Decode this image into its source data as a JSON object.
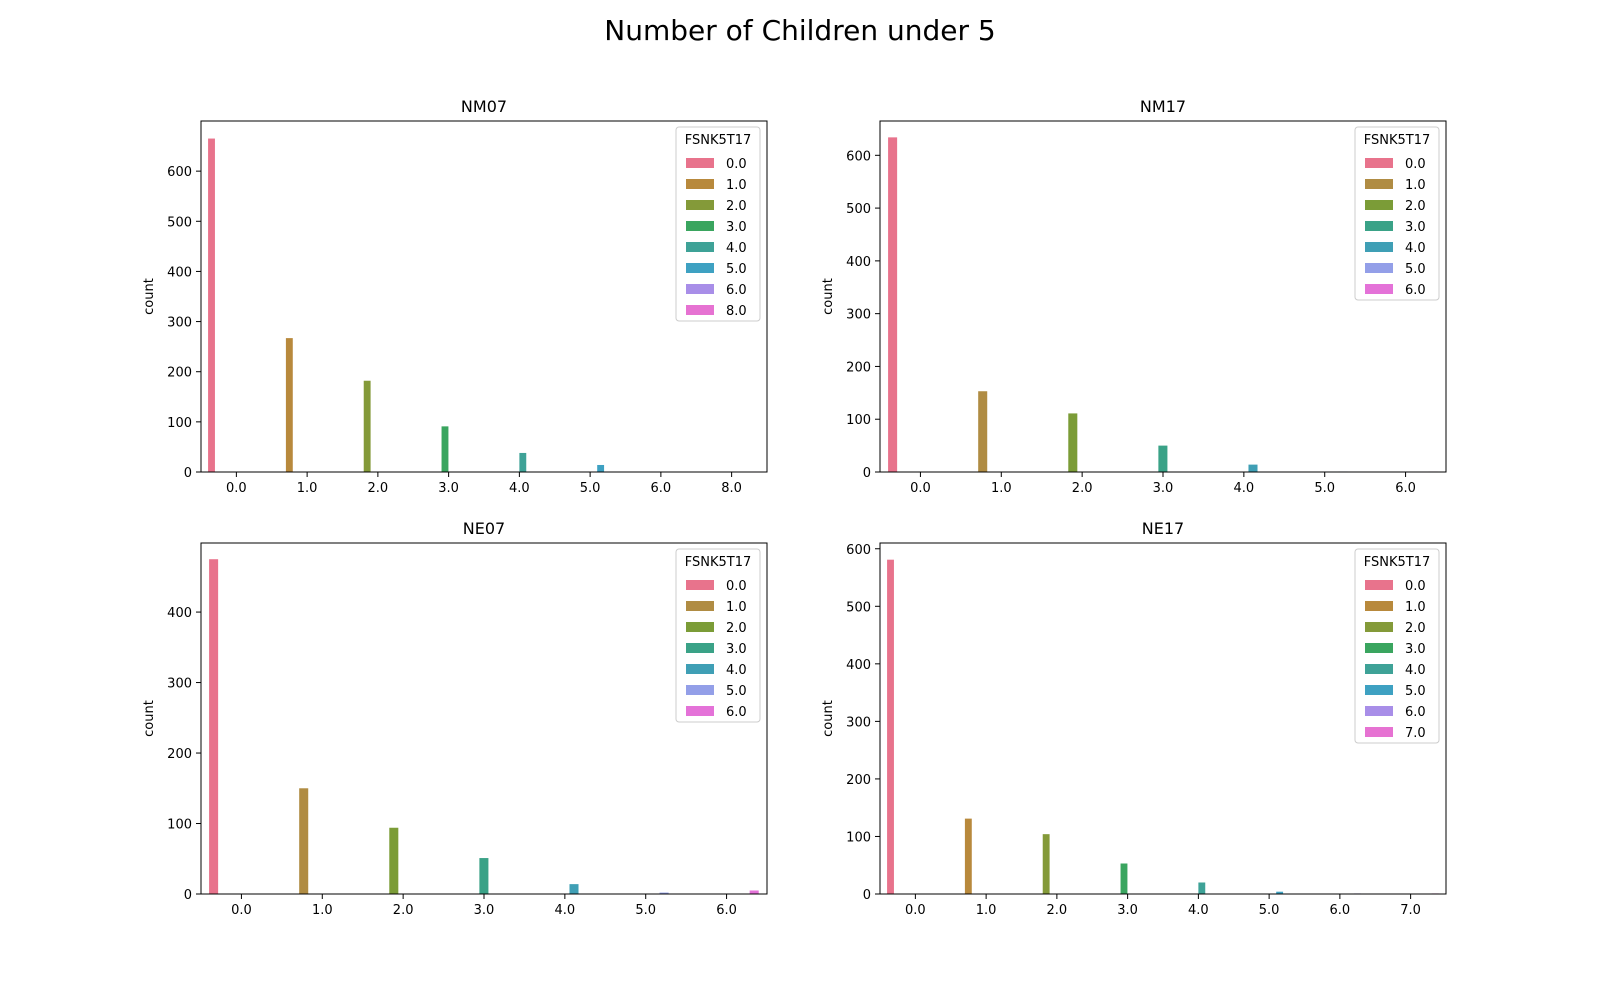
{
  "figure_title": "Number of Children under 5",
  "chart_data": [
    {
      "type": "bar",
      "title": "NM07",
      "ylabel": "count",
      "xlabel": "",
      "categories": [
        "0.0",
        "1.0",
        "2.0",
        "3.0",
        "4.0",
        "5.0",
        "6.0",
        "8.0"
      ],
      "yticks": [
        0,
        100,
        200,
        300,
        400,
        500,
        600
      ],
      "ylim": [
        0,
        700
      ],
      "legend_title": "FSNK5T17",
      "legend_position": "top-right",
      "series": [
        {
          "name": "0.0",
          "color": "#e8738c",
          "values": [
            665,
            0,
            0,
            0,
            0,
            0,
            0,
            0
          ]
        },
        {
          "name": "1.0",
          "color": "#b8893c",
          "values": [
            0,
            267,
            0,
            0,
            0,
            0,
            0,
            0
          ]
        },
        {
          "name": "2.0",
          "color": "#849a39",
          "values": [
            0,
            0,
            182,
            0,
            0,
            0,
            0,
            0
          ]
        },
        {
          "name": "3.0",
          "color": "#3aa55f",
          "values": [
            0,
            0,
            0,
            91,
            0,
            0,
            0,
            0
          ]
        },
        {
          "name": "4.0",
          "color": "#3ea297",
          "values": [
            0,
            0,
            0,
            0,
            38,
            0,
            0,
            0
          ]
        },
        {
          "name": "5.0",
          "color": "#3ea1c2",
          "values": [
            0,
            0,
            0,
            0,
            0,
            14,
            0,
            0
          ]
        },
        {
          "name": "6.0",
          "color": "#a88ee8",
          "values": [
            0,
            0,
            0,
            0,
            0,
            0,
            1,
            0
          ]
        },
        {
          "name": "8.0",
          "color": "#e672d2",
          "values": [
            0,
            0,
            0,
            0,
            0,
            0,
            0,
            1
          ]
        }
      ]
    },
    {
      "type": "bar",
      "title": "NM17",
      "ylabel": "count",
      "xlabel": "",
      "categories": [
        "0.0",
        "1.0",
        "2.0",
        "3.0",
        "4.0",
        "5.0",
        "6.0"
      ],
      "yticks": [
        0,
        100,
        200,
        300,
        400,
        500,
        600
      ],
      "ylim": [
        0,
        665
      ],
      "legend_title": "FSNK5T17",
      "legend_position": "top-right",
      "series": [
        {
          "name": "0.0",
          "color": "#e8738c",
          "values": [
            634,
            0,
            0,
            0,
            0,
            0,
            0
          ]
        },
        {
          "name": "1.0",
          "color": "#b08c43",
          "values": [
            0,
            153,
            0,
            0,
            0,
            0,
            0
          ]
        },
        {
          "name": "2.0",
          "color": "#7b9c37",
          "values": [
            0,
            0,
            111,
            0,
            0,
            0,
            0
          ]
        },
        {
          "name": "3.0",
          "color": "#3aa287",
          "values": [
            0,
            0,
            0,
            50,
            0,
            0,
            0
          ]
        },
        {
          "name": "4.0",
          "color": "#3f9fb5",
          "values": [
            0,
            0,
            0,
            0,
            14,
            0,
            0
          ]
        },
        {
          "name": "5.0",
          "color": "#939fe8",
          "values": [
            0,
            0,
            0,
            0,
            0,
            1,
            0
          ]
        },
        {
          "name": "6.0",
          "color": "#e472d8",
          "values": [
            0,
            0,
            0,
            0,
            0,
            0,
            1
          ]
        }
      ]
    },
    {
      "type": "bar",
      "title": "NE07",
      "ylabel": "count",
      "xlabel": "",
      "categories": [
        "0.0",
        "1.0",
        "2.0",
        "3.0",
        "4.0",
        "5.0",
        "6.0"
      ],
      "yticks": [
        0,
        100,
        200,
        300,
        400
      ],
      "ylim": [
        0,
        498
      ],
      "legend_title": "FSNK5T17",
      "legend_position": "top-right",
      "series": [
        {
          "name": "0.0",
          "color": "#e8738c",
          "values": [
            475,
            0,
            0,
            0,
            0,
            0,
            0
          ]
        },
        {
          "name": "1.0",
          "color": "#b08c43",
          "values": [
            0,
            150,
            0,
            0,
            0,
            0,
            0
          ]
        },
        {
          "name": "2.0",
          "color": "#7b9c37",
          "values": [
            0,
            0,
            94,
            0,
            0,
            0,
            0
          ]
        },
        {
          "name": "3.0",
          "color": "#3aa287",
          "values": [
            0,
            0,
            0,
            51,
            0,
            0,
            0
          ]
        },
        {
          "name": "4.0",
          "color": "#3f9fb5",
          "values": [
            0,
            0,
            0,
            0,
            14,
            0,
            0
          ]
        },
        {
          "name": "5.0",
          "color": "#939fe8",
          "values": [
            0,
            0,
            0,
            0,
            0,
            2,
            0
          ]
        },
        {
          "name": "6.0",
          "color": "#e472d8",
          "values": [
            0,
            0,
            0,
            0,
            0,
            0,
            5
          ]
        }
      ]
    },
    {
      "type": "bar",
      "title": "NE17",
      "ylabel": "count",
      "xlabel": "",
      "categories": [
        "0.0",
        "1.0",
        "2.0",
        "3.0",
        "4.0",
        "5.0",
        "6.0",
        "7.0"
      ],
      "yticks": [
        0,
        100,
        200,
        300,
        400,
        500,
        600
      ],
      "ylim": [
        0,
        610
      ],
      "legend_title": "FSNK5T17",
      "legend_position": "top-right",
      "series": [
        {
          "name": "0.0",
          "color": "#e8738c",
          "values": [
            581,
            0,
            0,
            0,
            0,
            0,
            0,
            0
          ]
        },
        {
          "name": "1.0",
          "color": "#b8893c",
          "values": [
            0,
            131,
            0,
            0,
            0,
            0,
            0,
            0
          ]
        },
        {
          "name": "2.0",
          "color": "#849a39",
          "values": [
            0,
            0,
            104,
            0,
            0,
            0,
            0,
            0
          ]
        },
        {
          "name": "3.0",
          "color": "#3aa55f",
          "values": [
            0,
            0,
            0,
            53,
            0,
            0,
            0,
            0
          ]
        },
        {
          "name": "4.0",
          "color": "#3ea297",
          "values": [
            0,
            0,
            0,
            0,
            20,
            0,
            0,
            0
          ]
        },
        {
          "name": "5.0",
          "color": "#3ea1c2",
          "values": [
            0,
            0,
            0,
            0,
            0,
            4,
            0,
            0
          ]
        },
        {
          "name": "6.0",
          "color": "#a88ee8",
          "values": [
            0,
            0,
            0,
            0,
            0,
            0,
            1,
            0
          ]
        },
        {
          "name": "7.0",
          "color": "#e672d2",
          "values": [
            0,
            0,
            0,
            0,
            0,
            0,
            0,
            1
          ]
        }
      ]
    }
  ]
}
